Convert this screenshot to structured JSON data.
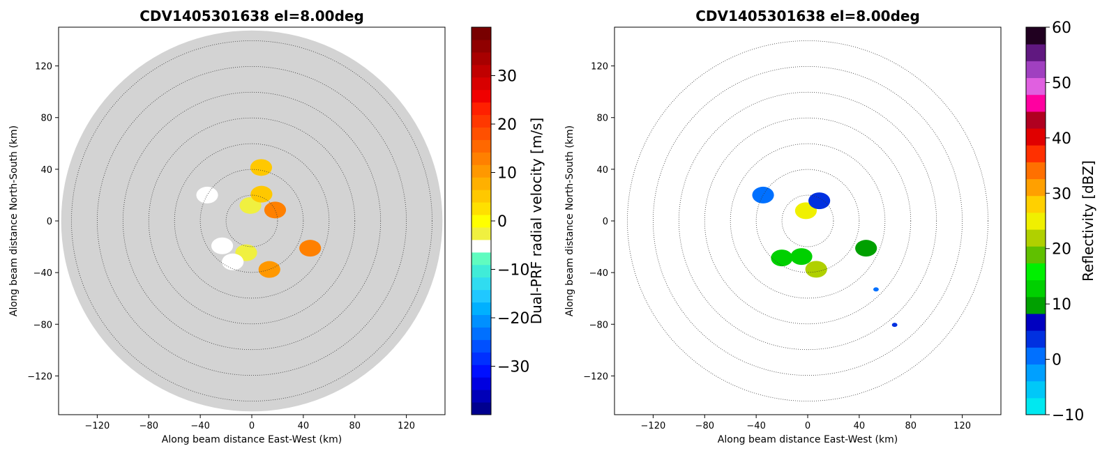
{
  "chart_data": [
    {
      "type": "heatmap",
      "title": "CDV1405301638 el=8.00deg",
      "xlabel": "Along beam distance East-West (km)",
      "ylabel": "Along beam distance North-South (km)",
      "xlim": [
        -150,
        150
      ],
      "ylim": [
        -150,
        150
      ],
      "xticks": [
        "−120",
        "−80",
        "−40",
        "0",
        "40",
        "80",
        "120"
      ],
      "yticks": [
        "120",
        "80",
        "40",
        "0",
        "−40",
        "−80",
        "−120"
      ],
      "range_rings_km": [
        20,
        40,
        60,
        80,
        100,
        120,
        140
      ],
      "max_range_km": 148,
      "no_data_color": "#d3d3d3",
      "colorbar": {
        "label": "Dual-PRF radial velocity [m/s]",
        "range": [
          -40,
          40
        ],
        "ticks": [
          "−30",
          "−20",
          "−10",
          "0",
          "10",
          "20",
          "30"
        ],
        "colors": [
          "#00008f",
          "#0000b8",
          "#0000e0",
          "#0010ff",
          "#0030ff",
          "#0050ff",
          "#0070ff",
          "#0090ff",
          "#00b0ff",
          "#20c8ff",
          "#30dcf0",
          "#40ecd8",
          "#60fcc0",
          "#ffffff",
          "#f0f040",
          "#ffff00",
          "#ffe000",
          "#ffc800",
          "#ffb000",
          "#ff9800",
          "#ff8000",
          "#ff6800",
          "#ff5000",
          "#ff3800",
          "#ff2000",
          "#f00000",
          "#d80000",
          "#c00000",
          "#a80000",
          "#900000",
          "#780000"
        ]
      },
      "echoes": [
        {
          "az_deg": 190,
          "range_km": 25,
          "value": -3
        },
        {
          "az_deg": 205,
          "range_km": 35,
          "value": -4
        },
        {
          "az_deg": 230,
          "range_km": 30,
          "value": -5
        },
        {
          "az_deg": 300,
          "range_km": 40,
          "value": -5
        },
        {
          "az_deg": 355,
          "range_km": 12,
          "value": -2
        },
        {
          "az_deg": 20,
          "range_km": 22,
          "value": 5
        },
        {
          "az_deg": 65,
          "range_km": 20,
          "value": 12
        },
        {
          "az_deg": 115,
          "range_km": 50,
          "value": 14
        },
        {
          "az_deg": 160,
          "range_km": 40,
          "value": 10
        },
        {
          "az_deg": 10,
          "range_km": 42,
          "value": 6
        }
      ]
    },
    {
      "type": "heatmap",
      "title": "CDV1405301638 el=8.00deg",
      "xlabel": "Along beam distance East-West (km)",
      "ylabel": "Along beam distance North-South (km)",
      "xlim": [
        -150,
        150
      ],
      "ylim": [
        -150,
        150
      ],
      "xticks": [
        "−120",
        "−80",
        "−40",
        "0",
        "40",
        "80",
        "120"
      ],
      "yticks": [
        "120",
        "80",
        "40",
        "0",
        "−40",
        "−80",
        "−120"
      ],
      "range_rings_km": [
        20,
        40,
        60,
        80,
        100,
        120,
        140
      ],
      "max_range_km": 140,
      "colorbar": {
        "label": "Reflectivity [dBZ]",
        "range": [
          -10,
          60
        ],
        "ticks": [
          "60",
          "50",
          "40",
          "30",
          "20",
          "10",
          "0",
          "−10"
        ],
        "colors": [
          "#00e8f0",
          "#00c8f8",
          "#00a0ff",
          "#0070ff",
          "#0030e0",
          "#0000c0",
          "#00a000",
          "#00d000",
          "#00f000",
          "#60c000",
          "#b0d000",
          "#f0f000",
          "#ffd000",
          "#ffa000",
          "#ff7000",
          "#ff3000",
          "#e00000",
          "#b00020",
          "#ff00a0",
          "#e060e0",
          "#a040c0",
          "#601880",
          "#200020"
        ]
      },
      "echoes": [
        {
          "az_deg": 190,
          "range_km": 28,
          "value": 14
        },
        {
          "az_deg": 170,
          "range_km": 38,
          "value": 22
        },
        {
          "az_deg": 215,
          "range_km": 35,
          "value": 12
        },
        {
          "az_deg": 350,
          "range_km": 8,
          "value": 25
        },
        {
          "az_deg": 30,
          "range_km": 18,
          "value": 4
        },
        {
          "az_deg": 115,
          "range_km": 50,
          "value": 10
        },
        {
          "az_deg": 300,
          "range_km": 40,
          "value": 0
        },
        {
          "az_deg": 135,
          "range_km": 75,
          "value": 2
        },
        {
          "az_deg": 140,
          "range_km": 105,
          "value": 4
        }
      ]
    }
  ]
}
